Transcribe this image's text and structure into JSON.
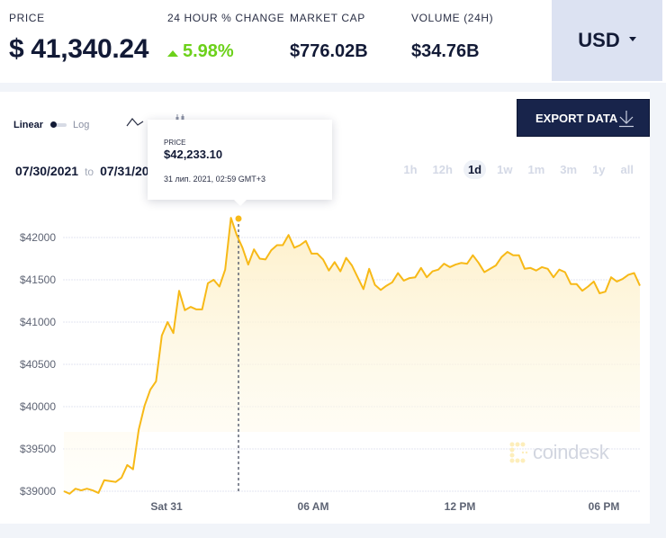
{
  "header": {
    "price_label": "PRICE",
    "price_value": "$ 41,340.24",
    "change_label": "24 HOUR % CHANGE",
    "change_value": "5.98%",
    "change_direction": "up",
    "market_cap_label": "MARKET CAP",
    "market_cap_value": "$776.02B",
    "volume_label": "VOLUME (24H)",
    "volume_value": "$34.76B",
    "currency": "USD"
  },
  "controls": {
    "scale_linear": "Linear",
    "scale_log": "Log",
    "chart_type_icons": [
      "line-chart-icon",
      "candlestick-chart-icon"
    ],
    "export_label": "EXPORT DATA",
    "export_icon": "download-icon",
    "date_from": "07/30/2021",
    "date_to_sep": "to",
    "date_to": "07/31/2021",
    "ranges": [
      "1h",
      "12h",
      "1d",
      "1w",
      "1m",
      "3m",
      "1y",
      "all"
    ],
    "active_range": "1d"
  },
  "tooltip": {
    "label": "PRICE",
    "value": "$42,233.10",
    "time": "31 лип. 2021, 02:59 GMT+3"
  },
  "watermark": "coindesk",
  "colors": {
    "line": "#f7b917",
    "change_up": "#6cd11a",
    "export_bg": "#18244b",
    "currency_bg": "#dce2f2"
  },
  "chart_data": {
    "type": "area",
    "title": "",
    "xlabel": "",
    "ylabel": "",
    "x_ticks": [
      "Sat 31",
      "06 AM",
      "12 PM",
      "06 PM"
    ],
    "y_ticks": [
      "$39000",
      "$39500",
      "$40000",
      "$40500",
      "$41000",
      "$41500",
      "$42000"
    ],
    "ylim": [
      39000,
      42300
    ],
    "grid": true,
    "legend": "none",
    "highlight": {
      "time": "31 лип. 2021, 02:59 GMT+3",
      "value": 42233.1
    },
    "series": [
      {
        "name": "Price (USD)",
        "values": [
          39000,
          38970,
          39030,
          39010,
          39030,
          39010,
          38980,
          39130,
          39120,
          39110,
          39160,
          39310,
          39260,
          39730,
          40010,
          40200,
          40300,
          40840,
          41000,
          40870,
          41370,
          41140,
          41180,
          41150,
          41150,
          41460,
          41500,
          41420,
          41620,
          42233,
          42030,
          41880,
          41680,
          41860,
          41750,
          41740,
          41850,
          41910,
          41910,
          42030,
          41880,
          41910,
          41960,
          41810,
          41810,
          41740,
          41610,
          41710,
          41600,
          41760,
          41670,
          41530,
          41390,
          41630,
          41440,
          41380,
          41430,
          41470,
          41580,
          41490,
          41520,
          41530,
          41640,
          41530,
          41600,
          41620,
          41690,
          41650,
          41680,
          41700,
          41690,
          41790,
          41700,
          41590,
          41630,
          41670,
          41770,
          41830,
          41790,
          41790,
          41630,
          41640,
          41610,
          41650,
          41630,
          41530,
          41620,
          41590,
          41450,
          41450,
          41370,
          41420,
          41480,
          41340,
          41360,
          41530,
          41480,
          41510,
          41560,
          41580,
          41430
        ]
      }
    ]
  }
}
